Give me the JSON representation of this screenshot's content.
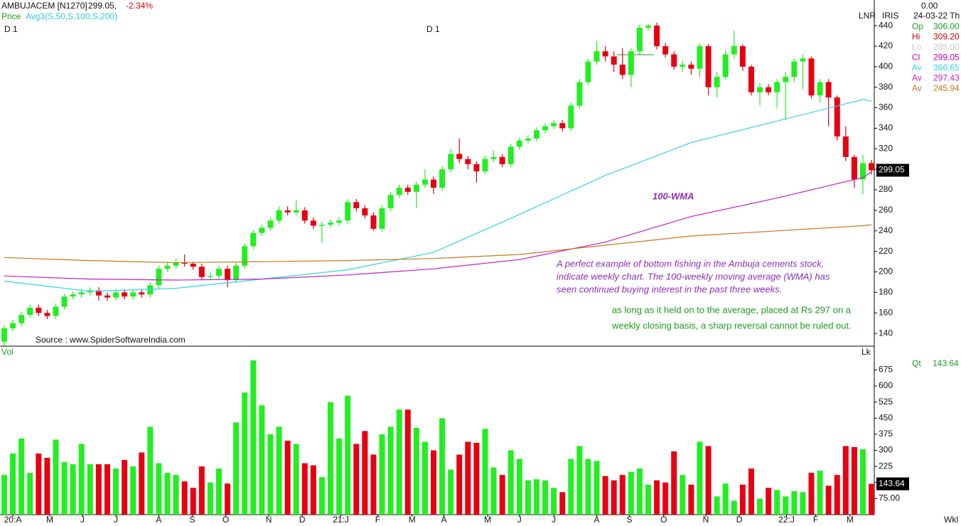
{
  "chart_data": [
    {
      "type": "candlestick",
      "symbol": "AMBUJACEM [N1270]",
      "last": "299.05,",
      "change": "-2.34%",
      "price_label": "Price",
      "avg_label": "Avg3(S,50,S,100,S,200)",
      "period_labels": [
        "D 1",
        "D 1"
      ],
      "scale_labels": [
        "LNR",
        "IRIS"
      ],
      "source": "Source : www.SpiderSoftwareIndia.com",
      "annotations": [
        "100-WMA",
        "A perfect example of bottom fishing in the Ambuja cements stock,",
        "indicate weekly chart. The 100-weekly moving average (WMA) has",
        "seen continued buying interest in the past three weeks.",
        "as long as it held on to the average, placed at Rs 297 on a",
        "weekly closing basis, a sharp reversal cannot be ruled out."
      ],
      "info": {
        "top": "0.00",
        "date": "24-03-22 Th",
        "rows": [
          {
            "label": "Op",
            "value": "306.00",
            "color": "#1aa01a"
          },
          {
            "label": "Hi",
            "value": "309.20",
            "color": "#d00000"
          },
          {
            "label": "Lo",
            "value": "295.00",
            "color": "#c8c8c8"
          },
          {
            "label": "Cl",
            "value": "299.05",
            "color": "#c000c0"
          }
        ]
      },
      "up_color": "#22ee22",
      "down_color": "#e60012",
      "ylim": [
        127.6,
        465
      ],
      "yticks": [
        140,
        160,
        180,
        200,
        220,
        240,
        260,
        280,
        300,
        320,
        340,
        360,
        380,
        400,
        420,
        440
      ],
      "open": [
        132,
        145,
        150,
        158,
        165,
        160,
        157,
        166,
        176,
        178,
        180,
        182,
        177,
        175,
        180,
        176,
        180,
        178,
        187,
        203,
        206,
        209,
        208,
        205,
        195,
        196,
        203,
        192,
        206,
        225,
        238,
        243,
        250,
        260,
        258,
        260,
        250,
        245,
        246,
        248,
        250,
        268,
        262,
        255,
        242,
        262,
        275,
        282,
        278,
        285,
        290,
        282,
        300,
        315,
        310,
        305,
        298,
        310,
        312,
        305,
        322,
        328,
        330,
        338,
        342,
        345,
        340,
        362,
        385,
        405,
        415,
        410,
        402,
        392,
        415,
        438,
        440,
        420,
        412,
        400,
        402,
        398,
        420,
        380,
        390,
        412,
        420,
        400,
        375,
        380,
        375,
        385,
        390,
        405,
        408,
        372,
        385,
        370,
        332,
        312,
        290,
        306
      ],
      "high": [
        148,
        153,
        161,
        168,
        168,
        163,
        169,
        179,
        181,
        183,
        185,
        185,
        180,
        183,
        183,
        183,
        183,
        190,
        206,
        210,
        213,
        217,
        210,
        208,
        200,
        206,
        206,
        209,
        228,
        241,
        246,
        253,
        264,
        264,
        270,
        263,
        253,
        249,
        251,
        253,
        271,
        271,
        265,
        258,
        265,
        278,
        285,
        285,
        288,
        300,
        293,
        303,
        320,
        330,
        313,
        308,
        313,
        318,
        315,
        325,
        331,
        333,
        341,
        345,
        348,
        348,
        365,
        388,
        408,
        425,
        420,
        415,
        418,
        418,
        441,
        442,
        443,
        423,
        415,
        406,
        405,
        423,
        422,
        395,
        416,
        435,
        422,
        402,
        384,
        383,
        388,
        395,
        408,
        412,
        410,
        388,
        388,
        372,
        342,
        314,
        314,
        309.2
      ],
      "low": [
        128,
        142,
        147,
        155,
        157,
        154,
        154,
        163,
        173,
        175,
        177,
        172,
        172,
        172,
        173,
        173,
        175,
        175,
        184,
        200,
        203,
        205,
        202,
        192,
        192,
        193,
        185,
        189,
        203,
        222,
        235,
        240,
        247,
        255,
        255,
        247,
        242,
        228,
        243,
        245,
        247,
        259,
        252,
        240,
        239,
        259,
        272,
        275,
        262,
        282,
        276,
        279,
        297,
        306,
        300,
        287,
        295,
        307,
        302,
        302,
        319,
        325,
        327,
        335,
        339,
        337,
        337,
        359,
        382,
        402,
        405,
        395,
        388,
        380,
        412,
        435,
        417,
        409,
        397,
        395,
        392,
        390,
        372,
        370,
        387,
        408,
        396,
        372,
        362,
        372,
        360,
        348,
        385,
        378,
        369,
        365,
        342,
        328,
        308,
        282,
        276,
        295
      ],
      "close": [
        145,
        150,
        158,
        165,
        160,
        157,
        166,
        176,
        178,
        180,
        182,
        177,
        175,
        180,
        176,
        180,
        178,
        187,
        203,
        206,
        209,
        208,
        205,
        195,
        196,
        203,
        192,
        206,
        225,
        238,
        243,
        250,
        260,
        258,
        260,
        250,
        245,
        246,
        248,
        250,
        268,
        262,
        255,
        242,
        262,
        275,
        282,
        278,
        285,
        290,
        282,
        300,
        315,
        310,
        305,
        298,
        310,
        312,
        305,
        322,
        328,
        330,
        338,
        342,
        345,
        340,
        362,
        385,
        405,
        415,
        410,
        402,
        392,
        415,
        438,
        440,
        420,
        412,
        400,
        402,
        398,
        420,
        380,
        390,
        412,
        420,
        400,
        375,
        380,
        375,
        385,
        390,
        405,
        408,
        372,
        385,
        370,
        332,
        312,
        290,
        306,
        299.05
      ],
      "series": [
        {
          "name": "Av",
          "color": "#2fd4e8",
          "x": [
            0,
            10,
            20,
            30,
            40,
            50,
            60,
            70,
            80,
            90,
            100,
            101
          ],
          "values": [
            191,
            181,
            184,
            193,
            202,
            219,
            256,
            294,
            326,
            347,
            368,
            366.65
          ]
        },
        {
          "name": "Av",
          "color": "#c020c8",
          "x": [
            0,
            10,
            20,
            30,
            40,
            50,
            60,
            70,
            80,
            90,
            100,
            101
          ],
          "values": [
            196,
            193,
            192,
            193,
            197,
            203,
            212,
            229,
            254,
            272,
            292,
            297.43
          ]
        },
        {
          "name": "Av",
          "color": "#c8781e",
          "x": [
            0,
            10,
            20,
            30,
            40,
            50,
            60,
            70,
            80,
            90,
            100,
            101
          ],
          "values": [
            214,
            211,
            209,
            210,
            211,
            213,
            217,
            226,
            235,
            240,
            245,
            245.94
          ]
        }
      ]
    },
    {
      "type": "bar",
      "title": "Vol",
      "unit_label": "Lk",
      "qty_label": "Qt",
      "period": "Wkl",
      "ylim": [
        0,
        776
      ],
      "yticks": [
        {
          "value": 75,
          "label": "75.00"
        },
        150,
        225,
        300,
        375,
        450,
        525,
        600,
        675
      ],
      "xticks": [
        {
          "value": 1,
          "label": "20:A"
        },
        {
          "value": 5.3,
          "label": "M"
        },
        {
          "value": 9.1,
          "label": "J"
        },
        {
          "value": 13,
          "label": "J"
        },
        {
          "value": 18,
          "label": "A"
        },
        {
          "value": 21.9,
          "label": "S"
        },
        {
          "value": 25.8,
          "label": "O"
        },
        {
          "value": 30.8,
          "label": "N"
        },
        {
          "value": 34.7,
          "label": "D"
        },
        {
          "value": 39.2,
          "label": "21:J"
        },
        {
          "value": 43.5,
          "label": "F"
        },
        {
          "value": 47.5,
          "label": "M"
        },
        {
          "value": 51.2,
          "label": "A"
        },
        {
          "value": 56.3,
          "label": "M"
        },
        {
          "value": 60,
          "label": "J"
        },
        {
          "value": 64,
          "label": "J"
        },
        {
          "value": 69,
          "label": "A"
        },
        {
          "value": 72.8,
          "label": "S"
        },
        {
          "value": 76.8,
          "label": "O"
        },
        {
          "value": 81.7,
          "label": "N"
        },
        {
          "value": 85.6,
          "label": "D"
        },
        {
          "value": 91.1,
          "label": "22:J"
        },
        {
          "value": 94.5,
          "label": "F"
        },
        {
          "value": 98.5,
          "label": "M"
        }
      ],
      "values": [
        185,
        285,
        355,
        195,
        285,
        265,
        350,
        245,
        235,
        330,
        235,
        235,
        235,
        215,
        255,
        225,
        290,
        410,
        240,
        195,
        185,
        155,
        125,
        225,
        150,
        215,
        145,
        430,
        570,
        720,
        510,
        375,
        410,
        345,
        330,
        240,
        230,
        175,
        525,
        355,
        555,
        330,
        390,
        280,
        375,
        410,
        490,
        490,
        405,
        340,
        300,
        450,
        210,
        280,
        340,
        335,
        400,
        220,
        185,
        300,
        260,
        160,
        165,
        160,
        125,
        105,
        260,
        320,
        260,
        250,
        180,
        160,
        185,
        200,
        215,
        140,
        160,
        150,
        295,
        185,
        140,
        340,
        320,
        85,
        145,
        65,
        140,
        215,
        75,
        125,
        115,
        85,
        110,
        105,
        195,
        205,
        135,
        185,
        320,
        315,
        305,
        143.64
      ]
    }
  ]
}
